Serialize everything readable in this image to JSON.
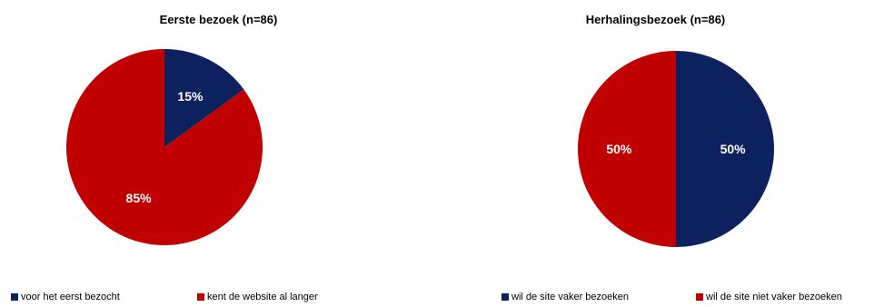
{
  "colors": {
    "navy": "#0D215E",
    "red": "#C00000"
  },
  "chart_data": [
    {
      "type": "pie",
      "title": "Eerste bezoek (n=86)",
      "slices": [
        {
          "label": "voor het eerst bezocht",
          "value": 15,
          "display": "15%",
          "color": "#0D215E"
        },
        {
          "label": "kent de website al langer",
          "value": 85,
          "display": "85%",
          "color": "#C00000"
        }
      ],
      "legend_position": "bottom"
    },
    {
      "type": "pie",
      "title": "Herhalingsbezoek (n=86)",
      "slices": [
        {
          "label": "wil de site vaker bezoeken",
          "value": 50,
          "display": "50%",
          "color": "#0D215E"
        },
        {
          "label": "wil de site niet vaker bezoeken",
          "value": 50,
          "display": "50%",
          "color": "#C00000"
        }
      ],
      "legend_position": "bottom"
    }
  ]
}
